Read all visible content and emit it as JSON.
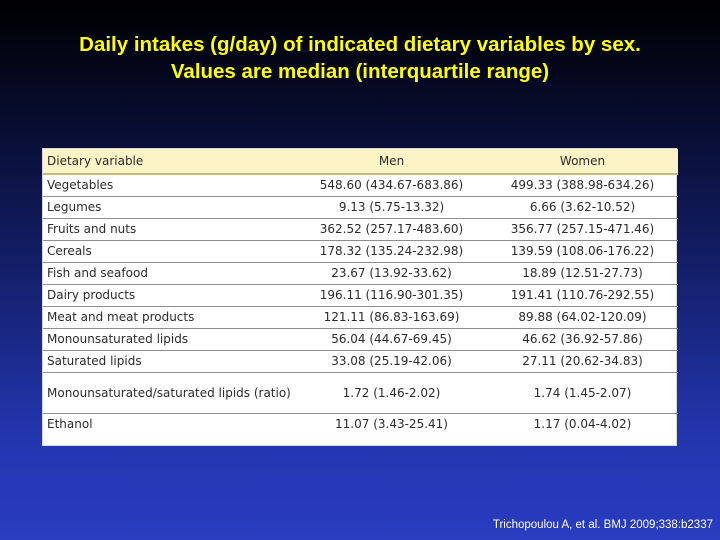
{
  "title": {
    "line1": "Daily intakes (g/day) of indicated dietary variables by sex.",
    "line2": "Values are median (interquartile range)"
  },
  "table": {
    "headers": [
      "Dietary variable",
      "Men",
      "Women"
    ],
    "rows": [
      {
        "variable": "Vegetables",
        "men": "548.60 (434.67-683.86)",
        "women": "499.33 (388.98-634.26)"
      },
      {
        "variable": "Legumes",
        "men": "9.13 (5.75-13.32)",
        "women": "6.66 (3.62-10.52)"
      },
      {
        "variable": "Fruits and nuts",
        "men": "362.52 (257.17-483.60)",
        "women": "356.77 (257.15-471.46)"
      },
      {
        "variable": "Cereals",
        "men": "178.32 (135.24-232.98)",
        "women": "139.59 (108.06-176.22)"
      },
      {
        "variable": "Fish and seafood",
        "men": "23.67 (13.92-33.62)",
        "women": "18.89 (12.51-27.73)"
      },
      {
        "variable": "Dairy products",
        "men": "196.11 (116.90-301.35)",
        "women": "191.41 (110.76-292.55)"
      },
      {
        "variable": "Meat and meat products",
        "men": "121.11 (86.83-163.69)",
        "women": "89.88 (64.02-120.09)"
      },
      {
        "variable": "Monounsaturated lipids",
        "men": "56.04 (44.67-69.45)",
        "women": "46.62 (36.92-57.86)"
      },
      {
        "variable": "Saturated lipids",
        "men": "33.08 (25.19-42.06)",
        "women": "27.11 (20.62-34.83)"
      },
      {
        "variable": "Monounsaturated/saturated lipids (ratio)",
        "men": "1.72 (1.46-2.02)",
        "women": "1.74 (1.45-2.07)"
      },
      {
        "variable": "Ethanol",
        "men": "11.07 (3.43-25.41)",
        "women": "1.17 (0.04-4.02)"
      }
    ]
  },
  "citation": "Trichopoulou A, et al. BMJ 2009;338:b2337",
  "colors": {
    "title": "#ffff00",
    "header_bg": "#fcf3c6",
    "background_top": "#000000",
    "background_bottom": "#2a3cc0"
  }
}
